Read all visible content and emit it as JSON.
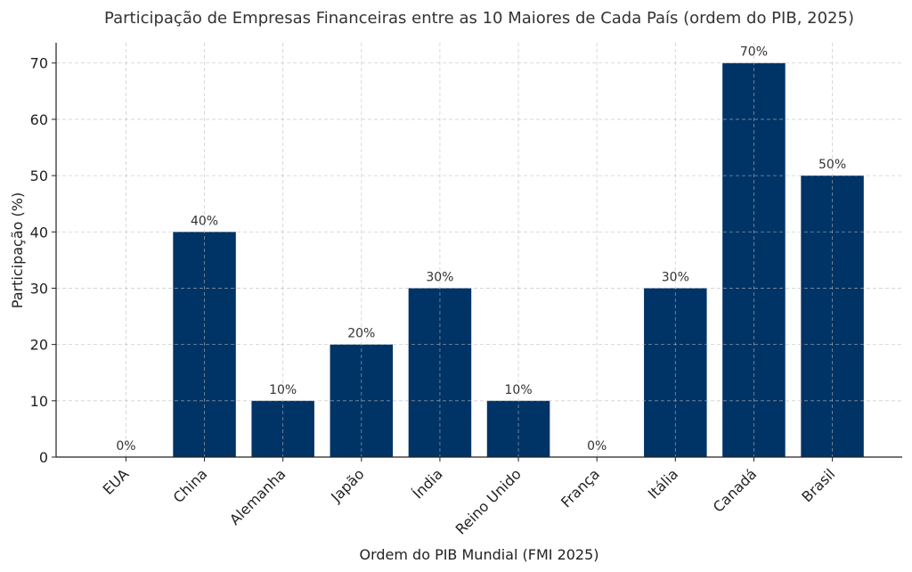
{
  "chart_data": {
    "type": "bar",
    "title": "Participação de Empresas Financeiras entre as 10 Maiores de Cada País (ordem do PIB, 2025)",
    "xlabel": "Ordem do PIB Mundial (FMI 2025)",
    "ylabel": "Participação (%)",
    "categories": [
      "EUA",
      "China",
      "Alemanha",
      "Japão",
      "Índia",
      "Reino Unido",
      "França",
      "Itália",
      "Canadá",
      "Brasil"
    ],
    "values": [
      0,
      40,
      10,
      20,
      30,
      10,
      0,
      30,
      70,
      50
    ],
    "data_labels": [
      "0%",
      "40%",
      "10%",
      "20%",
      "30%",
      "10%",
      "0%",
      "30%",
      "70%",
      "50%"
    ],
    "yticks": [
      0,
      10,
      20,
      30,
      40,
      50,
      60,
      70
    ],
    "ytick_labels": [
      "0",
      "10",
      "20",
      "30",
      "40",
      "50",
      "60",
      "70"
    ],
    "ylim": [
      0,
      73.6
    ],
    "grid": true,
    "bar_color": "#003366"
  }
}
